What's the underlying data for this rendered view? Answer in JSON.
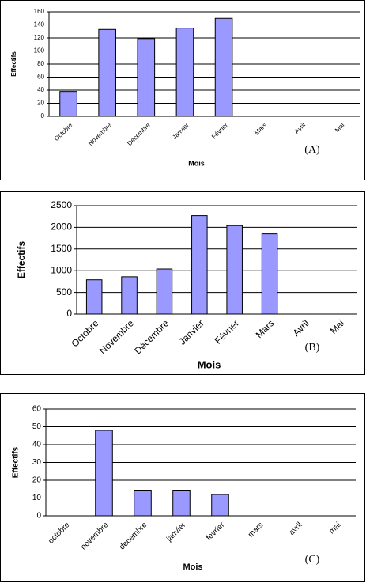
{
  "chart_data": [
    {
      "type": "bar",
      "annotation": "(A)",
      "y_label": "Effectifs",
      "x_label": "Mois",
      "categories": [
        "Octobre",
        "Novembre",
        "Décembre",
        "Janvier",
        "Février",
        "Mars",
        "Avril",
        "Mai"
      ],
      "values": [
        38,
        133,
        119,
        135,
        150,
        null,
        null,
        null
      ],
      "color": "#9999ff",
      "ylim": [
        0,
        160
      ],
      "yticks": [
        0,
        20,
        40,
        60,
        80,
        100,
        120,
        140,
        160
      ],
      "grid": true
    },
    {
      "type": "bar",
      "annotation": "(B)",
      "y_label": "Effectifs",
      "x_label": "Mois",
      "categories": [
        "Octobre",
        "Novembre",
        "Décembre",
        "Janvier",
        "Février",
        "Mars",
        "Avril",
        "Mai"
      ],
      "values": [
        790,
        860,
        1040,
        2270,
        2040,
        1850,
        null,
        null
      ],
      "color": "#9999ff",
      "ylim": [
        0,
        2500
      ],
      "yticks": [
        0,
        500,
        1000,
        1500,
        2000,
        2500
      ],
      "grid": true
    },
    {
      "type": "bar",
      "annotation": "(C)",
      "y_label": "Effectifs",
      "x_label": "Mois",
      "categories": [
        "octobre",
        "novembre",
        "decembre",
        "janvier",
        "fevrier",
        "mars",
        "avril",
        "mai"
      ],
      "values": [
        null,
        48,
        14,
        14,
        12,
        null,
        null,
        null
      ],
      "color": "#9999ff",
      "ylim": [
        0,
        60
      ],
      "yticks": [
        0,
        10,
        20,
        30,
        40,
        50,
        60
      ],
      "grid": true
    }
  ]
}
